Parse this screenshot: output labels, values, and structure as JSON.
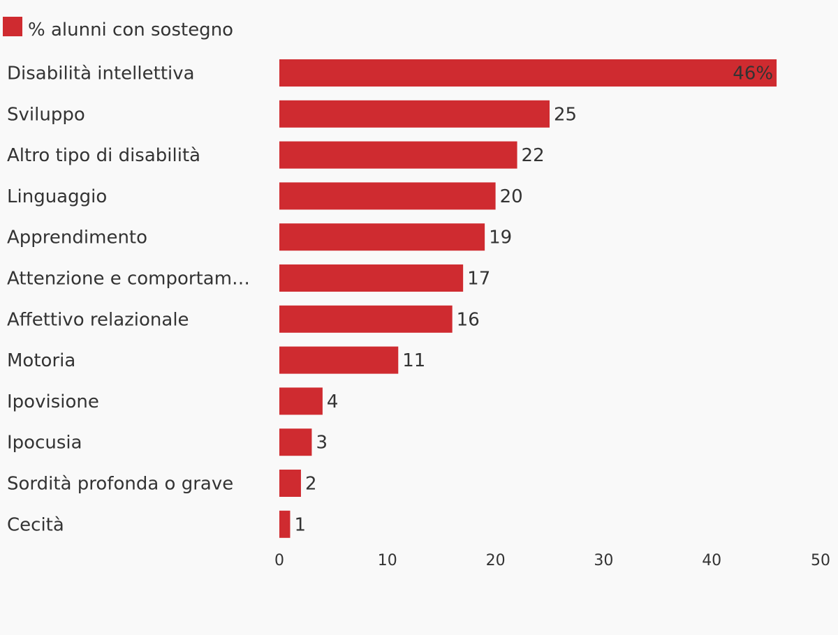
{
  "chart_data": {
    "type": "bar",
    "orientation": "horizontal",
    "legend": {
      "position": "top-left",
      "entries": [
        {
          "label": "% alunni con sostegno",
          "color": "#cf2b30"
        }
      ]
    },
    "series": [
      {
        "name": "% alunni con sostegno",
        "color": "#cf2b30",
        "values": [
          46,
          25,
          22,
          20,
          19,
          17,
          16,
          11,
          4,
          3,
          2,
          1
        ]
      }
    ],
    "categories": [
      "Disabilità intellettiva",
      "Sviluppo",
      "Altro tipo di disabilità",
      "Linguaggio",
      "Apprendimento",
      "Attenzione e comportam…",
      "Affettivo relazionale",
      "Motoria",
      "Ipovisione",
      "Ipocusia",
      "Sordità profonda o grave",
      "Cecità"
    ],
    "value_labels": [
      "46%",
      "25",
      "22",
      "20",
      "19",
      "17",
      "16",
      "11",
      "4",
      "3",
      "2",
      "1"
    ],
    "x_ticks": [
      0,
      10,
      20,
      30,
      40,
      50
    ],
    "xlim": [
      0,
      50
    ],
    "grid": false,
    "title": "",
    "xlabel": "",
    "ylabel": ""
  }
}
